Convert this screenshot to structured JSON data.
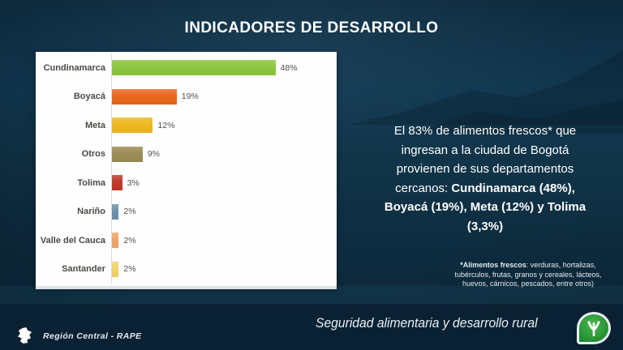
{
  "title": "INDICADORES DE DESARROLLO",
  "chart_data": {
    "type": "bar",
    "orientation": "horizontal",
    "title": "",
    "categories": [
      "Cundinamarca",
      "Boyacá",
      "Meta",
      "Otros",
      "Tolima",
      "Nariño",
      "Valle del Cauca",
      "Santander"
    ],
    "values": [
      48,
      19,
      12,
      9,
      3,
      2,
      2,
      2
    ],
    "value_labels": [
      "48%",
      "19%",
      "12%",
      "9%",
      "3%",
      "2%",
      "2%",
      "2%"
    ],
    "bar_colors": [
      "#8dc63f",
      "#e8671b",
      "#eeb820",
      "#9b8d55",
      "#c0392b",
      "#6d92ae",
      "#f2a469",
      "#f2d269"
    ],
    "xlim": [
      0,
      66
    ],
    "grid": false,
    "legend": false
  },
  "callout": {
    "normal": "El 83% de alimentos frescos* que ingresan a la ciudad de Bogotá provienen de sus departamentos cercanos: ",
    "bold": "Cundinamarca (48%), Boyacá (19%), Meta (12%) y Tolima (3,3%)"
  },
  "footnote": {
    "bold": "*Alimentos frescos",
    "rest": ": verduras, hortalizas, tubérculos, frutas, granos y cereales, lácteos, huevos, cárnicos, pescados, entre otros)"
  },
  "footer": {
    "left_label": "Región Central - RAPE",
    "tagline": "Seguridad alimentaria y desarrollo rural"
  },
  "colors": {
    "background": "#103347",
    "footer_bar": "#0a2133",
    "logo_green": "#2f9e35"
  }
}
